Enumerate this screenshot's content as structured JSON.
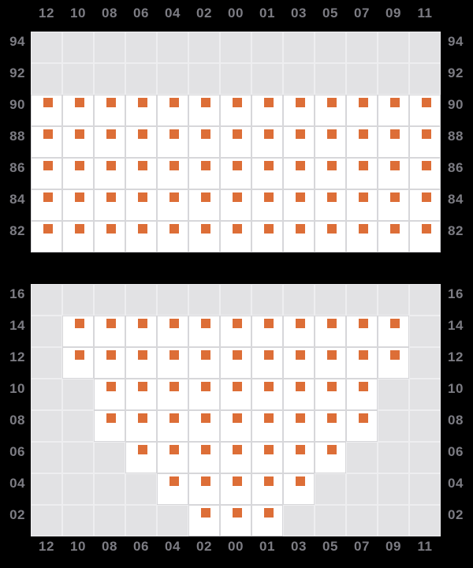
{
  "colors": {
    "background": "#000000",
    "cell_empty": "#e2e2e4",
    "cell_filled": "#ffffff",
    "marker": "#dd6e37",
    "grid_line_empty": "#eeeef0",
    "grid_line_filled": "#d7d7da",
    "axis_label": "#7c7c83"
  },
  "chart_data": {
    "type": "heatmap",
    "description": "Two stacked grid panels on black background; white cells contain an orange square marker (data present), light-gray cells are empty (no data).",
    "columns": [
      "12",
      "10",
      "08",
      "06",
      "04",
      "02",
      "00",
      "01",
      "03",
      "05",
      "07",
      "09",
      "11"
    ],
    "marker_legend": "orange square = data present in cell",
    "layout": {
      "column_labels_top_panel": "top",
      "column_labels_bottom_panel": "bottom",
      "row_labels": "both sides",
      "cell_size_px": 40
    },
    "panels": [
      {
        "name": "top-panel",
        "rows": [
          {
            "label": "94",
            "cells": [
              0,
              0,
              0,
              0,
              0,
              0,
              0,
              0,
              0,
              0,
              0,
              0,
              0
            ]
          },
          {
            "label": "92",
            "cells": [
              0,
              0,
              0,
              0,
              0,
              0,
              0,
              0,
              0,
              0,
              0,
              0,
              0
            ]
          },
          {
            "label": "90",
            "cells": [
              1,
              1,
              1,
              1,
              1,
              1,
              1,
              1,
              1,
              1,
              1,
              1,
              1
            ]
          },
          {
            "label": "88",
            "cells": [
              1,
              1,
              1,
              1,
              1,
              1,
              1,
              1,
              1,
              1,
              1,
              1,
              1
            ]
          },
          {
            "label": "86",
            "cells": [
              1,
              1,
              1,
              1,
              1,
              1,
              1,
              1,
              1,
              1,
              1,
              1,
              1
            ]
          },
          {
            "label": "84",
            "cells": [
              1,
              1,
              1,
              1,
              1,
              1,
              1,
              1,
              1,
              1,
              1,
              1,
              1
            ]
          },
          {
            "label": "82",
            "cells": [
              1,
              1,
              1,
              1,
              1,
              1,
              1,
              1,
              1,
              1,
              1,
              1,
              1
            ]
          }
        ]
      },
      {
        "name": "bottom-panel",
        "rows": [
          {
            "label": "16",
            "cells": [
              0,
              0,
              0,
              0,
              0,
              0,
              0,
              0,
              0,
              0,
              0,
              0,
              0
            ]
          },
          {
            "label": "14",
            "cells": [
              0,
              1,
              1,
              1,
              1,
              1,
              1,
              1,
              1,
              1,
              1,
              1,
              0
            ]
          },
          {
            "label": "12",
            "cells": [
              0,
              1,
              1,
              1,
              1,
              1,
              1,
              1,
              1,
              1,
              1,
              1,
              0
            ]
          },
          {
            "label": "10",
            "cells": [
              0,
              0,
              1,
              1,
              1,
              1,
              1,
              1,
              1,
              1,
              1,
              0,
              0
            ]
          },
          {
            "label": "08",
            "cells": [
              0,
              0,
              1,
              1,
              1,
              1,
              1,
              1,
              1,
              1,
              1,
              0,
              0
            ]
          },
          {
            "label": "06",
            "cells": [
              0,
              0,
              0,
              1,
              1,
              1,
              1,
              1,
              1,
              1,
              0,
              0,
              0
            ]
          },
          {
            "label": "04",
            "cells": [
              0,
              0,
              0,
              0,
              1,
              1,
              1,
              1,
              1,
              0,
              0,
              0,
              0
            ]
          },
          {
            "label": "02",
            "cells": [
              0,
              0,
              0,
              0,
              0,
              1,
              1,
              1,
              0,
              0,
              0,
              0,
              0
            ]
          }
        ]
      }
    ]
  }
}
